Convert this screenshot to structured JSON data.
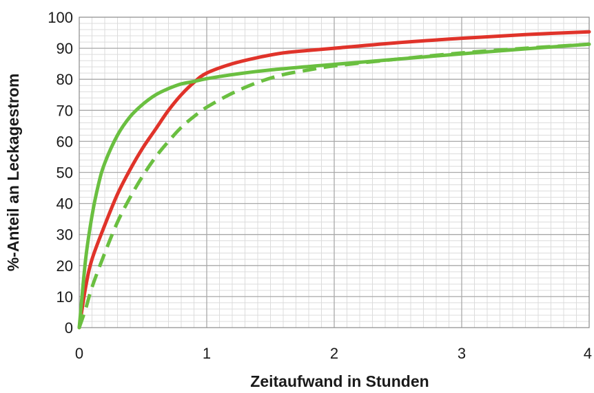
{
  "chart_data": {
    "type": "line",
    "title": "",
    "xlabel": "Zeitaufwand in Stunden",
    "ylabel": "%-Anteil an Leckagestrom",
    "xlim": [
      0,
      4
    ],
    "ylim": [
      0,
      100
    ],
    "x_ticks": [
      0,
      1,
      2,
      3,
      4
    ],
    "y_ticks": [
      0,
      10,
      20,
      30,
      40,
      50,
      60,
      70,
      80,
      90,
      100
    ],
    "x_minor_step": 0.1,
    "y_minor_step": 2,
    "grid": true,
    "legend": "none",
    "series": [
      {
        "color": "#e0332a",
        "style": "solid",
        "points": [
          [
            0,
            0
          ],
          [
            0.05,
            13
          ],
          [
            0.1,
            22
          ],
          [
            0.2,
            33
          ],
          [
            0.3,
            43
          ],
          [
            0.4,
            51
          ],
          [
            0.5,
            58
          ],
          [
            0.6,
            64
          ],
          [
            0.7,
            70
          ],
          [
            0.8,
            75
          ],
          [
            0.9,
            79
          ],
          [
            1.0,
            82
          ],
          [
            1.2,
            85
          ],
          [
            1.4,
            87
          ],
          [
            1.6,
            88.5
          ],
          [
            1.8,
            89.3
          ],
          [
            2.0,
            90
          ],
          [
            2.5,
            91.8
          ],
          [
            3.0,
            93.2
          ],
          [
            3.5,
            94.4
          ],
          [
            4.0,
            95.3
          ]
        ]
      },
      {
        "color": "#6abf40",
        "style": "solid",
        "points": [
          [
            0,
            0
          ],
          [
            0.05,
            22
          ],
          [
            0.1,
            36
          ],
          [
            0.15,
            46
          ],
          [
            0.2,
            53
          ],
          [
            0.3,
            62
          ],
          [
            0.4,
            68
          ],
          [
            0.5,
            72
          ],
          [
            0.6,
            75
          ],
          [
            0.7,
            77
          ],
          [
            0.8,
            78.5
          ],
          [
            0.9,
            79.3
          ],
          [
            1.0,
            80.2
          ],
          [
            1.2,
            81.5
          ],
          [
            1.5,
            83
          ],
          [
            2.0,
            84.8
          ],
          [
            2.5,
            86.5
          ],
          [
            3.0,
            88.2
          ],
          [
            3.5,
            89.8
          ],
          [
            4.0,
            91.3
          ]
        ]
      },
      {
        "color": "#6abf40",
        "style": "dashed",
        "points": [
          [
            0,
            0
          ],
          [
            0.05,
            6
          ],
          [
            0.1,
            13
          ],
          [
            0.2,
            24
          ],
          [
            0.3,
            34
          ],
          [
            0.4,
            42
          ],
          [
            0.5,
            49
          ],
          [
            0.6,
            55
          ],
          [
            0.7,
            60
          ],
          [
            0.8,
            64.5
          ],
          [
            0.9,
            68
          ],
          [
            1.0,
            71
          ],
          [
            1.2,
            75.5
          ],
          [
            1.4,
            79
          ],
          [
            1.6,
            81.5
          ],
          [
            1.8,
            83
          ],
          [
            2.0,
            84.3
          ],
          [
            2.5,
            86.5
          ],
          [
            3.0,
            88.5
          ],
          [
            3.5,
            90
          ],
          [
            4.0,
            91.3
          ]
        ]
      }
    ]
  }
}
